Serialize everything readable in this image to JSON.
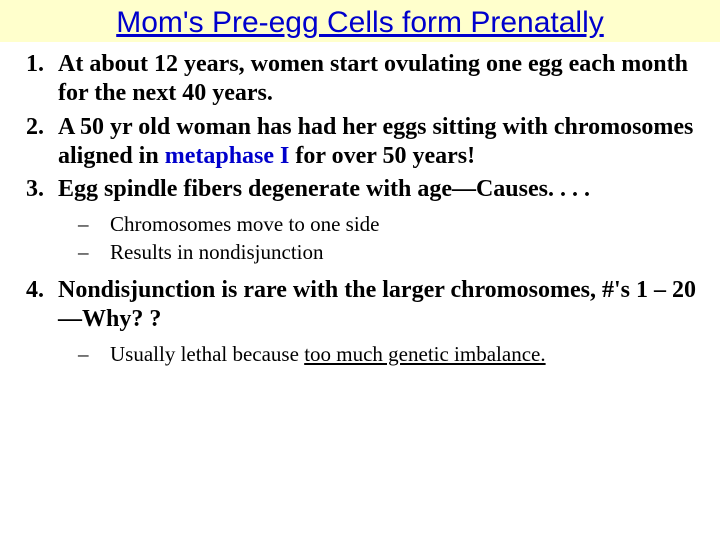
{
  "title": {
    "text": "Mom's Pre-egg Cells form Prenatally",
    "color": "#0000cc",
    "background": "#ffffcc",
    "underline_color": "#0000cc",
    "fontsize": 30
  },
  "list": {
    "item1_a": "At about 12 years, women start ovulating one egg each month for the next 40 years.",
    "item2_a": "A 50 yr old woman has had her eggs sitting with chromosomes aligned in ",
    "item2_b": "metaphase I",
    "item2_c": " for over 50 years!",
    "item3_a": "Egg spindle fibers degenerate with age—Causes. . . .",
    "item3_sub1": "Chromosomes move to one side",
    "item3_sub2": "Results in nondisjunction",
    "item4_a": "Nondisjunction is rare with the larger chromosomes, #'s 1 – 20—Why? ?",
    "item4_sub1_a": "Usually lethal because ",
    "item4_sub1_b": "too much genetic imbalance."
  },
  "colors": {
    "body_bg": "#ffffff",
    "text": "#000000",
    "accent": "#0000cc",
    "title_bg": "#ffffcc"
  },
  "typography": {
    "body_font": "Times New Roman",
    "title_font": "Arial",
    "list_fontsize": 24,
    "sublist_fontsize": 21
  }
}
